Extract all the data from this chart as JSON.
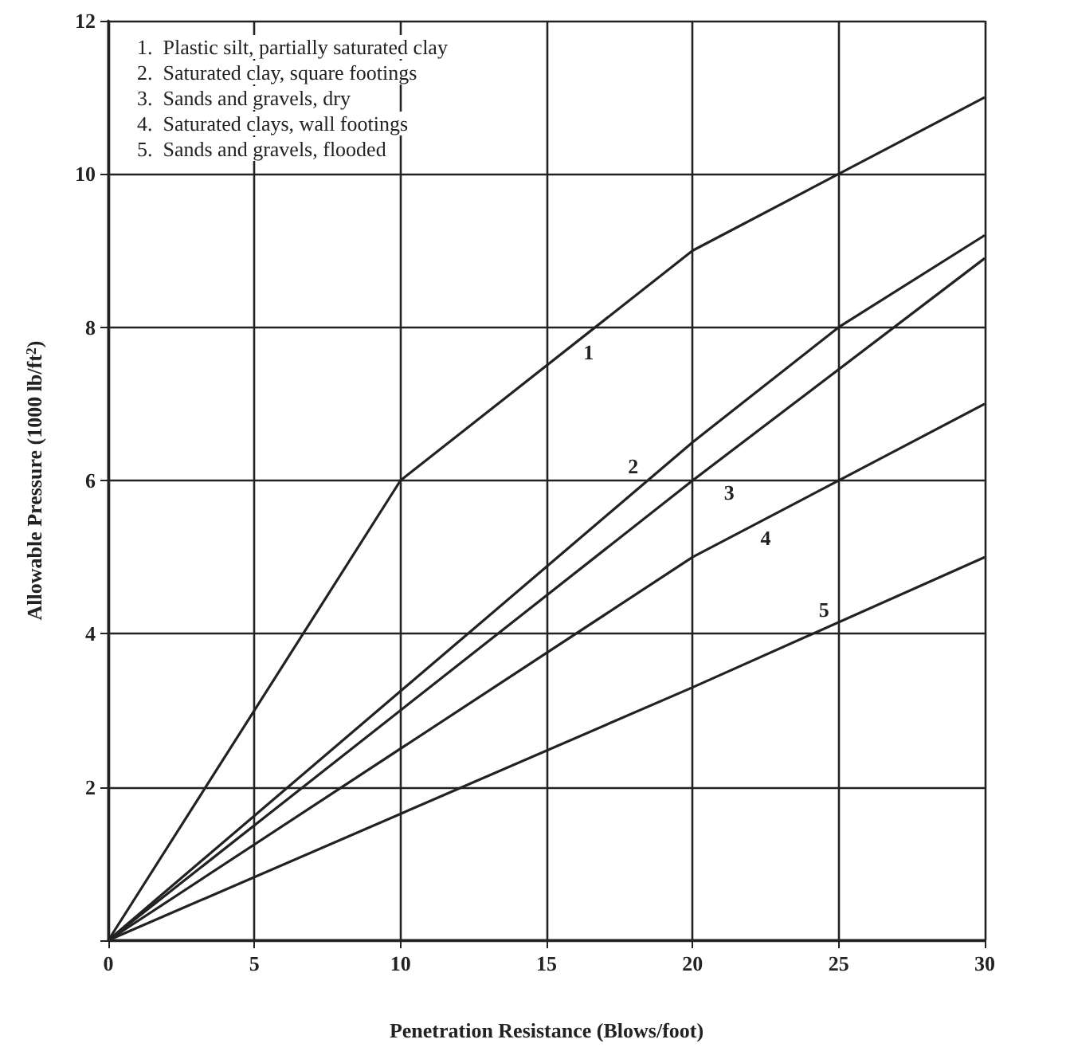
{
  "chart_data": {
    "type": "line",
    "xlabel": "Penetration Resistance (Blows/foot)",
    "ylabel": "Allowable Pressure (1000 lb/ft$^{2}$)",
    "xlim": [
      0,
      30
    ],
    "xticks": [
      0,
      5,
      10,
      15,
      20,
      25,
      30
    ],
    "ylim": [
      0,
      12
    ],
    "yticks": [
      {
        "value": 0,
        "label": null
      },
      2,
      4,
      6,
      8,
      10,
      12
    ],
    "grid": true,
    "marker": "none",
    "line_style": "solid",
    "series": [
      {
        "name": "1",
        "color": "#222222",
        "x": [
          0,
          10,
          20,
          30
        ],
        "values": [
          0,
          6,
          9,
          11
        ]
      },
      {
        "name": "2",
        "color": "#222222",
        "x": [
          0,
          20,
          25,
          30
        ],
        "values": [
          0,
          6.5,
          8,
          9.2
        ]
      },
      {
        "name": "3",
        "color": "#222222",
        "x": [
          0,
          20,
          30
        ],
        "values": [
          0,
          6,
          8.9
        ]
      },
      {
        "name": "4",
        "color": "#222222",
        "x": [
          0,
          20,
          30
        ],
        "values": [
          0,
          5,
          7
        ]
      },
      {
        "name": "5",
        "color": "#222222",
        "x": [
          0,
          20,
          30
        ],
        "values": [
          0,
          3.3,
          5
        ]
      }
    ],
    "annotations": [
      "1.  Plastic silt, partially saturated clay",
      "2.  Saturated clay, square footings",
      "3.  Sands and gravels, dry",
      "4.  Saturated clays, wall footings",
      "5.  Sands and gravels, flooded"
    ]
  }
}
